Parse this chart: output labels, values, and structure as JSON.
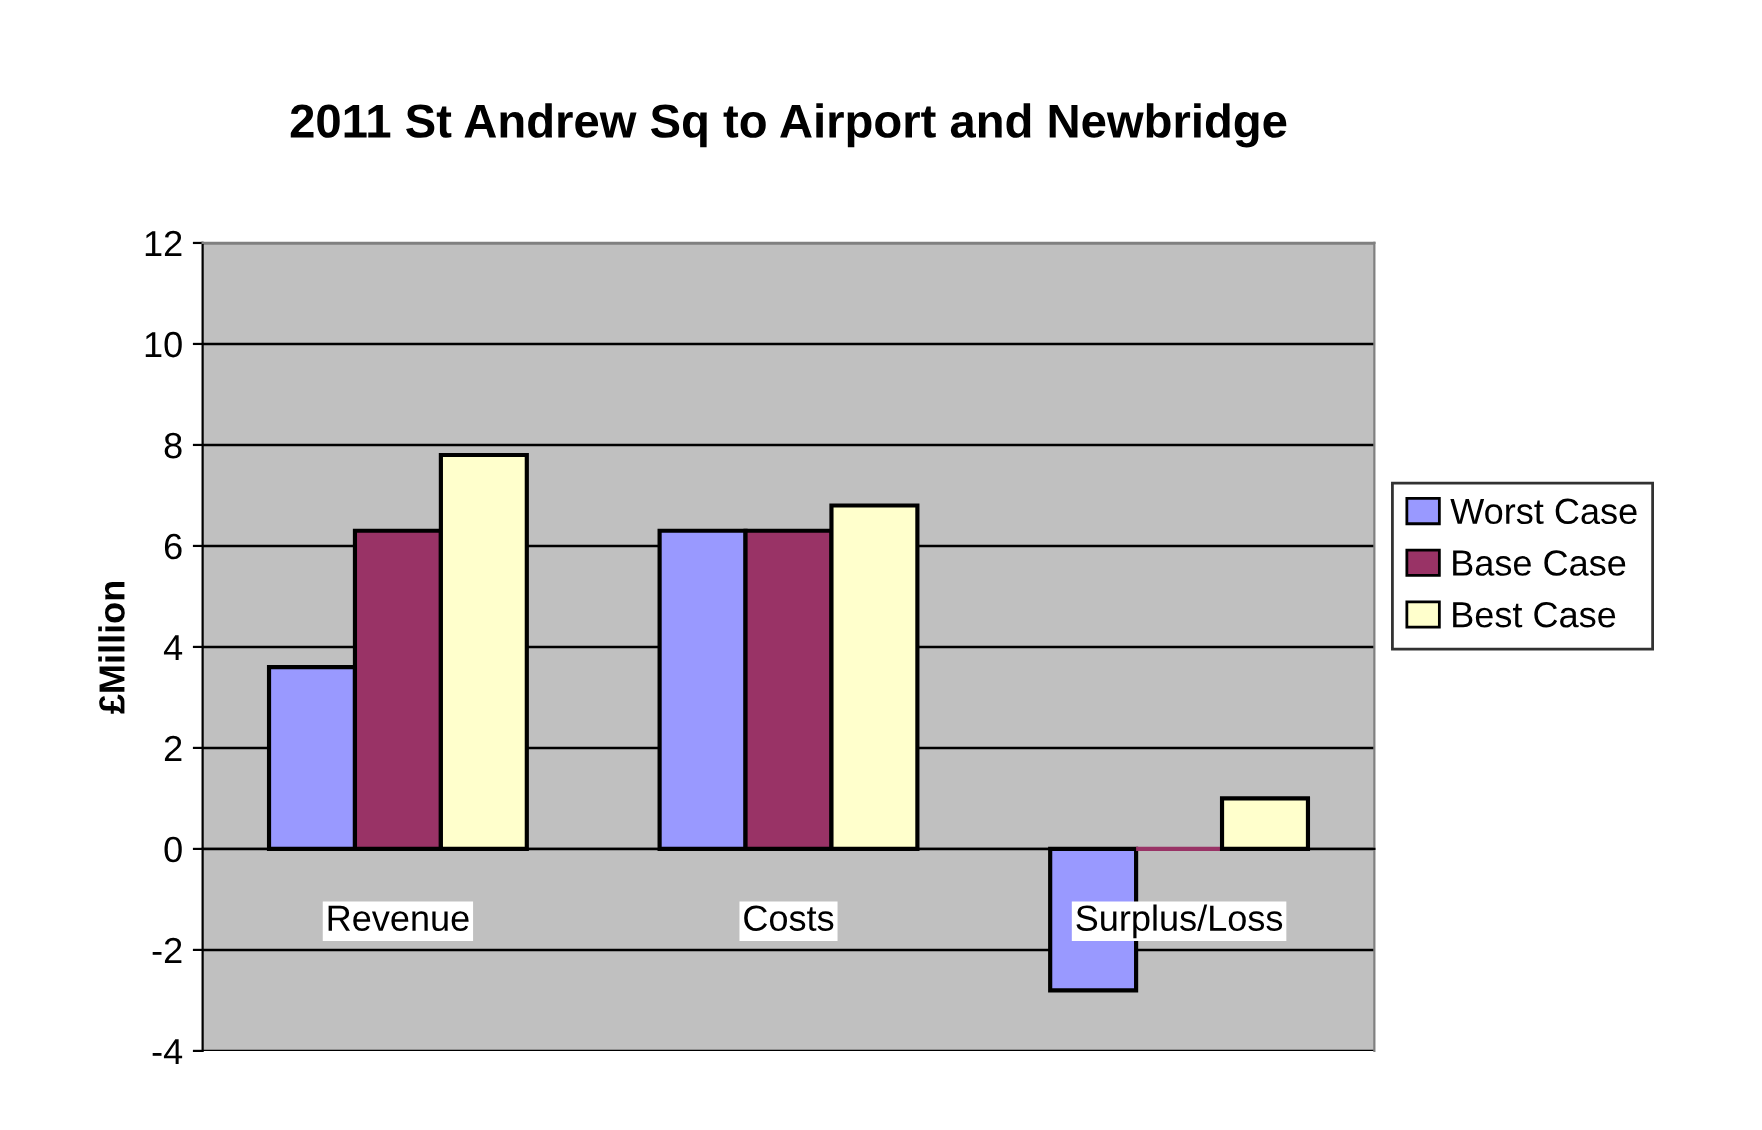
{
  "chart_data": {
    "type": "bar",
    "title": "2011 St Andrew Sq to Airport and Newbridge",
    "ylabel": "£Million",
    "categories": [
      "Revenue",
      "Costs",
      "Surplus/Loss"
    ],
    "series": [
      {
        "name": "Worst Case",
        "color": "#9999ff",
        "values": [
          3.6,
          6.3,
          -2.8
        ]
      },
      {
        "name": "Base Case",
        "color": "#993366",
        "values": [
          6.3,
          6.3,
          0
        ]
      },
      {
        "name": "Best Case",
        "color": "#ffffcc",
        "values": [
          7.8,
          6.8,
          1.0
        ]
      }
    ],
    "ylim": [
      -4,
      12
    ],
    "yticks": [
      -4,
      -2,
      0,
      2,
      4,
      6,
      8,
      10,
      12
    ],
    "grid": "y",
    "legend": "right"
  }
}
